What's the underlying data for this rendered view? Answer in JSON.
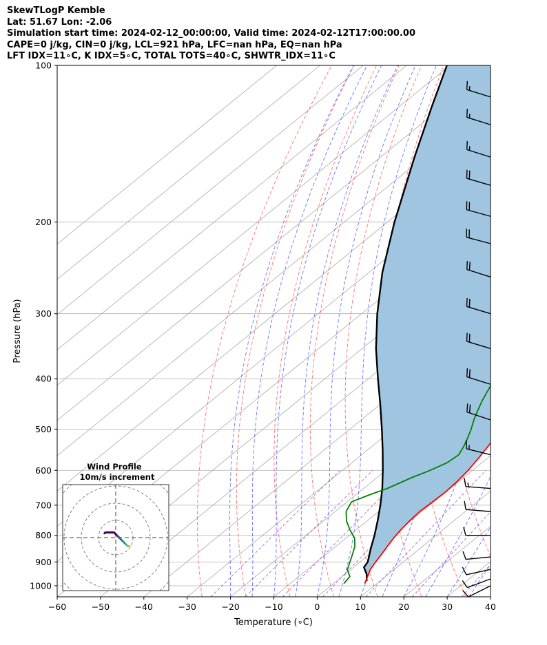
{
  "header": {
    "line1": "SkewTLogP Kemble",
    "line2": "Lat: 51.67   Lon: -2.06",
    "line3": "Simulation start time: 2024-02-12_00:00:00, Valid time: 2024-02-12T17:00:00.00",
    "line4": "CAPE=0 j/kg, CIN=0 j/kg, LCL=921 hPa, LFC=nan hPa, EQ=nan hPa",
    "line5": "LFT IDX=11∘C, K IDX=5∘C, TOTAL TOTS=40∘C, SHWTR_IDX=11∘C"
  },
  "chart_data": {
    "type": "line",
    "xlabel": "Temperature (∘C)",
    "ylabel": "Pressure (hPa)",
    "xlim": [
      -60,
      40
    ],
    "ylim": [
      1050,
      100
    ],
    "y_scale": "log",
    "grid": true,
    "x_ticks": [
      -60,
      -50,
      -40,
      -30,
      -20,
      -10,
      0,
      10,
      20,
      30,
      40
    ],
    "y_ticks": [
      100,
      200,
      300,
      400,
      500,
      600,
      700,
      800,
      900,
      1000
    ],
    "colors": {
      "temperature": "#ff0000",
      "dewpoint": "#008000",
      "parcel": "#000000",
      "shading": "#a0c5e0",
      "dry_adiabats": "#ff5050",
      "moist_adiabats": "#4a55ff",
      "mixing_ratio": "#a050d0",
      "isotherms": "#a8a8a8"
    },
    "series": [
      {
        "key": "temperature",
        "pressure": [
          990,
          960,
          930,
          900,
          870,
          840,
          810,
          780,
          750,
          720,
          690,
          660,
          630,
          600,
          570,
          540,
          510,
          480,
          450,
          420,
          400,
          380,
          350,
          320,
          300,
          280,
          265,
          250,
          240,
          225,
          210,
          200,
          185,
          170,
          150,
          130,
          115,
          100
        ],
        "temp": [
          7.2,
          5.9,
          4.5,
          3.6,
          2.8,
          1.9,
          1.0,
          0.3,
          -0.2,
          -0.5,
          -0.3,
          -0.1,
          -0.4,
          -1.0,
          -2.0,
          -3.2,
          -4.6,
          -6.2,
          -8.0,
          -9.8,
          -11.0,
          -12.0,
          -13.0,
          -14.4,
          -15.2,
          -15.8,
          -15.9,
          -15.5,
          -14.9,
          -13.3,
          -11.7,
          -11.0,
          -8.7,
          -6.3,
          -4.3,
          -0.8,
          2.3,
          5.2
        ]
      },
      {
        "key": "dewpoint",
        "pressure": [
          990,
          960,
          930,
          900,
          870,
          840,
          810,
          780,
          750,
          720,
          690,
          670,
          650,
          620,
          600,
          580,
          560,
          540,
          520,
          500,
          480,
          460,
          440,
          420,
          400,
          380,
          350,
          320,
          300,
          280,
          265,
          250,
          240,
          225,
          210,
          200,
          185,
          170,
          150,
          130,
          115,
          100
        ],
        "temp": [
          2.4,
          1.8,
          -0.8,
          -2.3,
          -3.9,
          -5.6,
          -8.0,
          -11.5,
          -14.8,
          -17.5,
          -19.0,
          -17.0,
          -14.5,
          -12.0,
          -9.8,
          -8.0,
          -7.6,
          -8.8,
          -10.3,
          -12.0,
          -14.0,
          -15.8,
          -17.6,
          -19.2,
          -20.9,
          -22.1,
          -24.1,
          -26.3,
          -28.0,
          -30.3,
          -32.0,
          -33.0,
          -32.9,
          -33.4,
          -34.0,
          -36.1,
          -41.1,
          -43.1,
          -42.1,
          -40.9,
          -39.6,
          -38.4
        ]
      },
      {
        "key": "parcel",
        "pressure": [
          980,
          950,
          921,
          900,
          850,
          800,
          750,
          700,
          650,
          600,
          550,
          500,
          450,
          400,
          350,
          300,
          250,
          200,
          150,
          120,
          100
        ],
        "temp": [
          7.0,
          5.0,
          2.4,
          1.8,
          -1.2,
          -4.2,
          -7.6,
          -11.4,
          -15.7,
          -20.7,
          -26.3,
          -32.6,
          -39.7,
          -47.8,
          -56.8,
          -66.4,
          -76.9,
          -88.4,
          -102.2,
          -112.5,
          -120.7
        ]
      }
    ],
    "wind_barbs": [
      {
        "pressure": 1000,
        "u": 8,
        "v": 4
      },
      {
        "pressure": 970,
        "u": 8,
        "v": 3
      },
      {
        "pressure": 930,
        "u": 9,
        "v": 2
      },
      {
        "pressure": 880,
        "u": 10,
        "v": 1
      },
      {
        "pressure": 800,
        "u": 11,
        "v": 0
      },
      {
        "pressure": 720,
        "u": 12,
        "v": -1
      },
      {
        "pressure": 650,
        "u": 13,
        "v": -1
      },
      {
        "pressure": 560,
        "u": 16,
        "v": -4
      },
      {
        "pressure": 480,
        "u": 18,
        "v": -6
      },
      {
        "pressure": 410,
        "u": 19,
        "v": -6
      },
      {
        "pressure": 350,
        "u": 20,
        "v": -6
      },
      {
        "pressure": 300,
        "u": 20,
        "v": -6
      },
      {
        "pressure": 255,
        "u": 19,
        "v": -6
      },
      {
        "pressure": 220,
        "u": 19,
        "v": -5
      },
      {
        "pressure": 195,
        "u": 18,
        "v": -5
      },
      {
        "pressure": 170,
        "u": 17,
        "v": -5
      },
      {
        "pressure": 150,
        "u": 16,
        "v": -5
      },
      {
        "pressure": 130,
        "u": 16,
        "v": -5
      },
      {
        "pressure": 115,
        "u": 16,
        "v": -5
      }
    ],
    "hodograph": {
      "title": "Wind Profile",
      "subtitle": "10m/s increment",
      "u": [
        8,
        7,
        6,
        5,
        4,
        3,
        2,
        1,
        0,
        -1,
        -3,
        -5,
        -6,
        -6.5
      ],
      "v": [
        -5,
        -5,
        -4,
        -3,
        -2,
        -1,
        0,
        1,
        2,
        3,
        3,
        3,
        3,
        2.5
      ]
    }
  }
}
